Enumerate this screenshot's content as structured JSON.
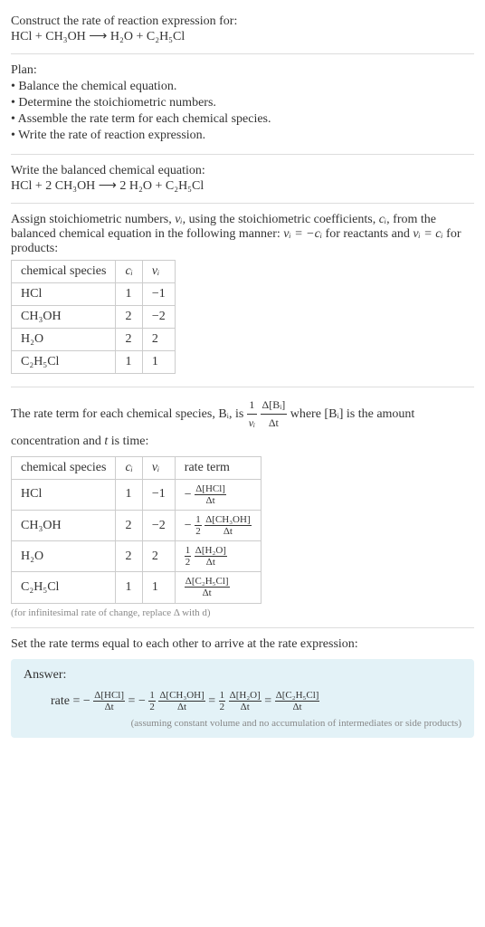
{
  "problem": {
    "line1": "Construct the rate of reaction expression for:",
    "equation": "HCl + CH₃OH  ⟶  H₂O + C₂H₅Cl"
  },
  "plan": {
    "heading": "Plan:",
    "items": [
      "• Balance the chemical equation.",
      "• Determine the stoichiometric numbers.",
      "• Assemble the rate term for each chemical species.",
      "• Write the rate of reaction expression."
    ]
  },
  "balanced": {
    "text": "Write the balanced chemical equation:",
    "equation": "HCl + 2 CH₃OH  ⟶  2 H₂O + C₂H₅Cl"
  },
  "stoich_text": {
    "p1a": "Assign stoichiometric numbers, ",
    "nu": "νᵢ",
    "p1b": ", using the stoichiometric coefficients, ",
    "ci": "cᵢ",
    "p1c": ", from the balanced chemical equation in the following manner: ",
    "rel1": "νᵢ = −cᵢ",
    "p1d": " for reactants and ",
    "rel2": "νᵢ = cᵢ",
    "p1e": " for products:"
  },
  "table1": {
    "headers": [
      "chemical species",
      "cᵢ",
      "νᵢ"
    ],
    "rows": [
      {
        "sp": "HCl",
        "c": "1",
        "v": "−1"
      },
      {
        "sp": "CH₃OH",
        "c": "2",
        "v": "−2"
      },
      {
        "sp": "H₂O",
        "c": "2",
        "v": "2"
      },
      {
        "sp": "C₂H₅Cl",
        "c": "1",
        "v": "1"
      }
    ]
  },
  "rateterm_text": {
    "a": "The rate term for each chemical species, Bᵢ, is ",
    "b": " where [Bᵢ] is the amount concentration and ",
    "t": "t",
    "c": " is time:",
    "frac1_num": "1",
    "frac1_den": "νᵢ",
    "frac2_num": "Δ[Bᵢ]",
    "frac2_den": "Δt"
  },
  "table2": {
    "headers": [
      "chemical species",
      "cᵢ",
      "νᵢ",
      "rate term"
    ],
    "rows": [
      {
        "sp": "HCl",
        "c": "1",
        "v": "−1",
        "neg": "−",
        "coef_num": "",
        "coef_den": "",
        "num": "Δ[HCl]",
        "den": "Δt"
      },
      {
        "sp": "CH₃OH",
        "c": "2",
        "v": "−2",
        "neg": "−",
        "coef_num": "1",
        "coef_den": "2",
        "num": "Δ[CH₃OH]",
        "den": "Δt"
      },
      {
        "sp": "H₂O",
        "c": "2",
        "v": "2",
        "neg": "",
        "coef_num": "1",
        "coef_den": "2",
        "num": "Δ[H₂O]",
        "den": "Δt"
      },
      {
        "sp": "C₂H₅Cl",
        "c": "1",
        "v": "1",
        "neg": "",
        "coef_num": "",
        "coef_den": "",
        "num": "Δ[C₂H₅Cl]",
        "den": "Δt"
      }
    ],
    "note": "(for infinitesimal rate of change, replace Δ with d)"
  },
  "final_text": "Set the rate terms equal to each other to arrive at the rate expression:",
  "answer": {
    "label": "Answer:",
    "rate": "rate = ",
    "minus": "−",
    "eq": " = ",
    "t1_num": "Δ[HCl]",
    "t1_den": "Δt",
    "c2_num": "1",
    "c2_den": "2",
    "t2_num": "Δ[CH₃OH]",
    "t2_den": "Δt",
    "c3_num": "1",
    "c3_den": "2",
    "t3_num": "Δ[H₂O]",
    "t3_den": "Δt",
    "t4_num": "Δ[C₂H₅Cl]",
    "t4_den": "Δt",
    "note": "(assuming constant volume and no accumulation of intermediates or side products)"
  }
}
